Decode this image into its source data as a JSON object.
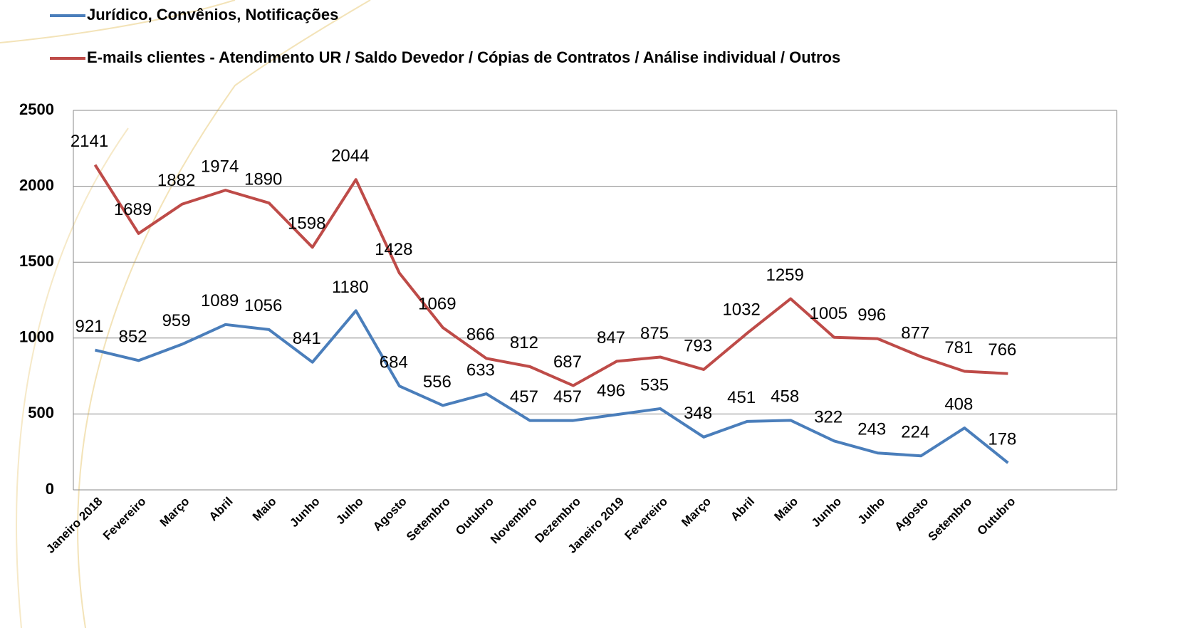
{
  "chart_data": {
    "type": "line",
    "categories": [
      "Janeiro 2018",
      "Fevereiro",
      "Março",
      "Abril",
      "Maio",
      "Junho",
      "Julho",
      "Agosto",
      "Setembro",
      "Outubro",
      "Novembro",
      "Dezembro",
      "Janeiro 2019",
      "Fevereiro",
      "Março",
      "Abril",
      "Maio",
      "Junho",
      "Julho",
      "Agosto",
      "Setembro",
      "Outubro",
      null,
      null
    ],
    "series": [
      {
        "name": "Jurídico, Convênios, Notificações",
        "color": "#4a7ebb",
        "values": [
          921,
          852,
          959,
          1089,
          1056,
          841,
          1180,
          684,
          556,
          633,
          457,
          457,
          496,
          535,
          348,
          451,
          458,
          322,
          243,
          224,
          408,
          178,
          null,
          null
        ]
      },
      {
        "name": "E-mails clientes - Atendimento UR / Saldo Devedor / Cópias de Contratos / Análise individual / Outros",
        "color": "#be4b48",
        "values": [
          2141,
          1689,
          1882,
          1974,
          1890,
          1598,
          2044,
          1428,
          1069,
          866,
          812,
          687,
          847,
          875,
          793,
          1032,
          1259,
          1005,
          996,
          877,
          781,
          766,
          null,
          null
        ]
      }
    ],
    "ylim": [
      0,
      2500
    ],
    "yticks": [
      0,
      500,
      1000,
      1500,
      2000,
      2500
    ],
    "grid": true,
    "legend": "top"
  }
}
